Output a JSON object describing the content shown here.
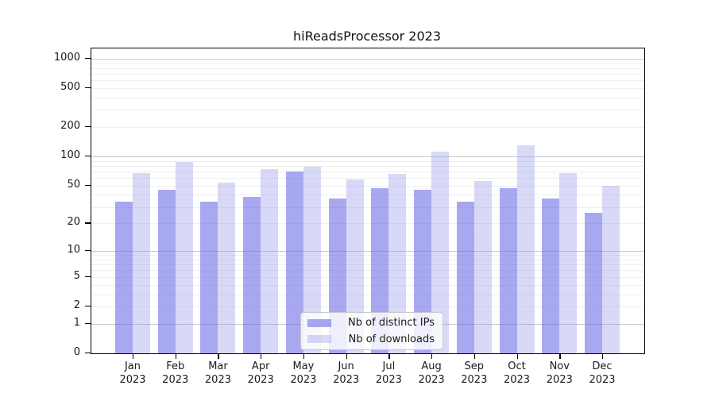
{
  "title": "hiReadsProcessor 2023",
  "colors": {
    "distinct_ips_fill": "rgba(102,102,230,0.57)",
    "downloads_fill": "rgba(153,153,235,0.38)",
    "major_grid": "#c9c9c9",
    "minor_grid": "#efefef",
    "axis": "#000000",
    "text": "#1a1a1a"
  },
  "legend": {
    "position": "lower center",
    "items": [
      {
        "label": "Nb of distinct IPs",
        "color_key": "distinct_ips_fill"
      },
      {
        "label": "Nb of downloads",
        "color_key": "downloads_fill"
      }
    ]
  },
  "chart_data": {
    "type": "bar",
    "title": "hiReadsProcessor 2023",
    "yscale": "log1p",
    "grid": true,
    "legend_position": "lower center",
    "categories": [
      "Jan 2023",
      "Feb 2023",
      "Mar 2023",
      "Apr 2023",
      "May 2023",
      "Jun 2023",
      "Jul 2023",
      "Aug 2023",
      "Sep 2023",
      "Oct 2023",
      "Nov 2023",
      "Dec 2023"
    ],
    "series": [
      {
        "name": "Nb of distinct IPs",
        "color_key": "distinct_ips_fill",
        "values": [
          34,
          45,
          34,
          38,
          70,
          37,
          47,
          45,
          34,
          47,
          37,
          26
        ]
      },
      {
        "name": "Nb of downloads",
        "color_key": "downloads_fill",
        "values": [
          68,
          88,
          54,
          74,
          78,
          58,
          66,
          112,
          56,
          130,
          67,
          50
        ]
      }
    ],
    "y_ticks": [
      0,
      1,
      2,
      5,
      10,
      20,
      50,
      100,
      200,
      500,
      1000
    ],
    "y_major_gridlines": [
      1,
      10,
      100,
      1000
    ],
    "ylim": [
      0,
      1270
    ],
    "xlabel": "",
    "ylabel": ""
  }
}
